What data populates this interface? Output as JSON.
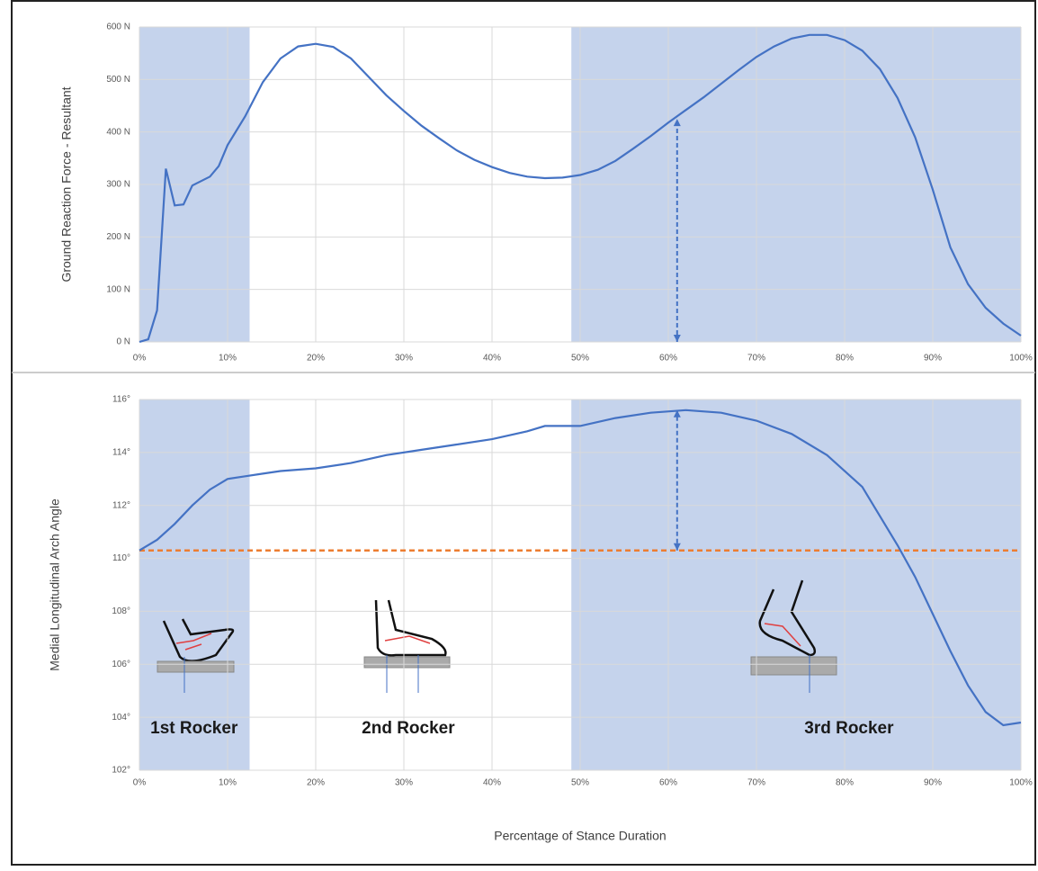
{
  "chart_data": [
    {
      "type": "line",
      "y_label": "Ground Reaction Force - Resultant",
      "x": [
        0,
        1,
        2,
        3,
        4,
        5,
        6,
        8,
        9,
        10,
        12,
        14,
        16,
        18,
        20,
        22,
        24,
        26,
        28,
        30,
        32,
        34,
        36,
        38,
        40,
        42,
        44,
        46,
        48,
        50,
        52,
        54,
        56,
        58,
        60,
        62,
        64,
        66,
        68,
        70,
        72,
        74,
        76,
        78,
        80,
        82,
        84,
        86,
        88,
        90,
        92,
        94,
        96,
        98,
        100
      ],
      "series": [
        {
          "color": "#4472c4",
          "values": [
            0,
            5,
            60,
            330,
            260,
            262,
            298,
            315,
            335,
            375,
            430,
            495,
            540,
            563,
            568,
            562,
            540,
            505,
            470,
            440,
            412,
            388,
            365,
            347,
            333,
            322,
            315,
            312,
            313,
            318,
            328,
            345,
            368,
            392,
            418,
            442,
            466,
            492,
            518,
            543,
            563,
            578,
            585,
            585,
            575,
            555,
            520,
            465,
            390,
            290,
            180,
            110,
            65,
            35,
            12
          ]
        }
      ],
      "xlim": [
        0,
        100
      ],
      "xticks": [
        {
          "value": 0,
          "label": "0%"
        },
        {
          "value": 10,
          "label": "10%"
        },
        {
          "value": 20,
          "label": "20%"
        },
        {
          "value": 30,
          "label": "30%"
        },
        {
          "value": 40,
          "label": "40%"
        },
        {
          "value": 50,
          "label": "50%"
        },
        {
          "value": 60,
          "label": "60%"
        },
        {
          "value": 70,
          "label": "70%"
        },
        {
          "value": 80,
          "label": "80%"
        },
        {
          "value": 90,
          "label": "90%"
        },
        {
          "value": 100,
          "label": "100%"
        }
      ],
      "ylim": [
        0,
        600
      ],
      "yticks": [
        {
          "value": 0,
          "label": "0 N"
        },
        {
          "value": 100,
          "label": "100 N"
        },
        {
          "value": 200,
          "label": "200 N"
        },
        {
          "value": 300,
          "label": "300 N"
        },
        {
          "value": 400,
          "label": "400 N"
        },
        {
          "value": 500,
          "label": "500 N"
        },
        {
          "value": 600,
          "label": "600 N"
        }
      ],
      "grid": true,
      "shaded_ranges": [
        [
          0,
          12.5
        ],
        [
          49,
          100
        ]
      ],
      "shade_color": "#c5d3ec",
      "arrow": {
        "x": 61,
        "from": 0,
        "to": 425
      }
    },
    {
      "type": "line",
      "y_label": "Medial Longitudinal Arch Angle",
      "x_label": "Percentage of Stance Duration",
      "x": [
        0,
        2,
        4,
        6,
        8,
        10,
        12,
        14,
        16,
        20,
        24,
        28,
        32,
        36,
        40,
        44,
        46,
        50,
        54,
        58,
        62,
        66,
        70,
        74,
        78,
        82,
        86,
        88,
        90,
        92,
        94,
        96,
        98,
        100
      ],
      "series": [
        {
          "color": "#4472c4",
          "values": [
            110.3,
            110.7,
            111.3,
            112.0,
            112.6,
            113.0,
            113.1,
            113.2,
            113.3,
            113.4,
            113.6,
            113.9,
            114.1,
            114.3,
            114.5,
            114.8,
            115.0,
            115.0,
            115.3,
            115.5,
            115.6,
            115.5,
            115.2,
            114.7,
            113.9,
            112.7,
            110.5,
            109.3,
            107.9,
            106.5,
            105.2,
            104.2,
            103.7,
            103.8
          ]
        }
      ],
      "xlim": [
        0,
        100
      ],
      "xticks": [
        {
          "value": 0,
          "label": "0%"
        },
        {
          "value": 10,
          "label": "10%"
        },
        {
          "value": 20,
          "label": "20%"
        },
        {
          "value": 30,
          "label": "30%"
        },
        {
          "value": 40,
          "label": "40%"
        },
        {
          "value": 50,
          "label": "50%"
        },
        {
          "value": 60,
          "label": "60%"
        },
        {
          "value": 70,
          "label": "70%"
        },
        {
          "value": 80,
          "label": "80%"
        },
        {
          "value": 90,
          "label": "90%"
        },
        {
          "value": 100,
          "label": "100%"
        }
      ],
      "ylim": [
        102,
        116
      ],
      "yticks": [
        {
          "value": 102,
          "label": "102°"
        },
        {
          "value": 104,
          "label": "104°"
        },
        {
          "value": 106,
          "label": "106°"
        },
        {
          "value": 108,
          "label": "108°"
        },
        {
          "value": 110,
          "label": "110°"
        },
        {
          "value": 112,
          "label": "112°"
        },
        {
          "value": 114,
          "label": "114°"
        },
        {
          "value": 116,
          "label": "116°"
        }
      ],
      "grid": true,
      "shaded_ranges": [
        [
          0,
          12.5
        ],
        [
          49,
          100
        ]
      ],
      "shade_color": "#c5d3ec",
      "reference_line": {
        "value": 110.3,
        "color": "#ed7d31"
      },
      "arrow": {
        "x": 61,
        "from": 110.3,
        "to": 115.6
      },
      "annotations": [
        {
          "text": "1st Rocker",
          "x": 6.2
        },
        {
          "text": "2nd Rocker",
          "x": 30.5
        },
        {
          "text": "3rd Rocker",
          "x": 80.5
        }
      ]
    }
  ]
}
